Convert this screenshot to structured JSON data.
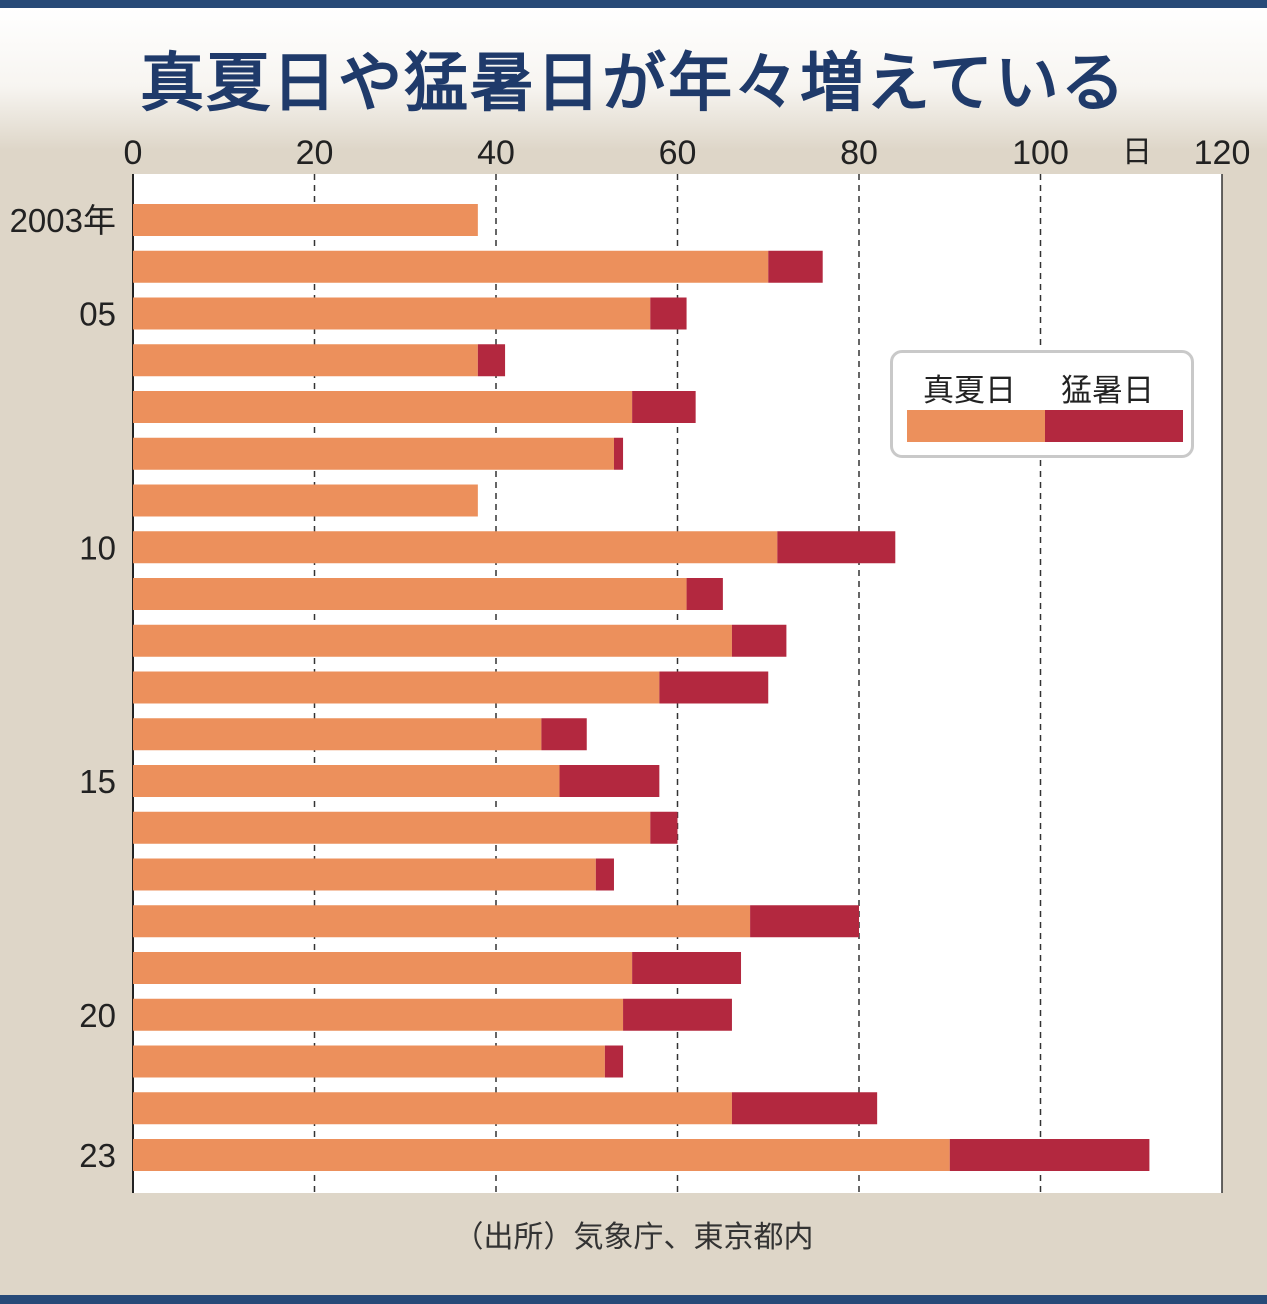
{
  "title": "真夏日や猛暑日が年々増えている",
  "source": "（出所）気象庁、東京都内",
  "colors": {
    "manatsubi": "#ec905c",
    "mosho": "#b3283f",
    "grid": "#333333",
    "axis": "#222222"
  },
  "chart_data": {
    "type": "bar",
    "orientation": "horizontal",
    "stacked": true,
    "xlim": [
      0,
      120
    ],
    "x_ticks": [
      "0",
      "20",
      "40",
      "60",
      "80",
      "100",
      "120"
    ],
    "x_unit": "日",
    "y_tick_labels": [
      "2003年",
      "05",
      "10",
      "15",
      "20",
      "23"
    ],
    "categories": [
      "2003",
      "2004",
      "2005",
      "2006",
      "2007",
      "2008",
      "2009",
      "2010",
      "2011",
      "2012",
      "2013",
      "2014",
      "2015",
      "2016",
      "2017",
      "2018",
      "2019",
      "2020",
      "2021",
      "2022",
      "2023"
    ],
    "series": [
      {
        "name": "真夏日",
        "values": [
          38,
          70,
          57,
          38,
          55,
          53,
          38,
          71,
          61,
          66,
          58,
          45,
          47,
          57,
          51,
          68,
          55,
          54,
          52,
          66,
          90
        ]
      },
      {
        "name": "猛暑日",
        "values": [
          0,
          6,
          4,
          3,
          7,
          1,
          0,
          13,
          4,
          6,
          12,
          5,
          11,
          3,
          2,
          12,
          12,
          12,
          2,
          16,
          22
        ]
      }
    ],
    "grid": "vertical-dashed",
    "legend_position": "top-right"
  }
}
